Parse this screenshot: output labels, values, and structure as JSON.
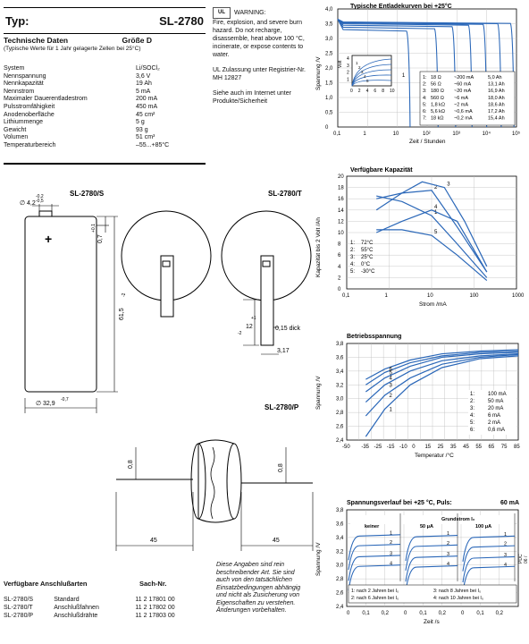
{
  "header": {
    "type_label": "Typ:",
    "model": "SL-2780"
  },
  "specs": {
    "title": "Technische Daten",
    "size": "Größe D",
    "subtitle": "(Typische Werte für 1 Jahr gelagerte Zellen bei 25°C)",
    "rows": [
      {
        "k": "System",
        "v": "Li/SOCl₂"
      },
      {
        "k": "Nennspannung",
        "v": "3,6 V"
      },
      {
        "k": "Nennkapazität",
        "v": "19 Ah"
      },
      {
        "k": "Nennstrom",
        "v": "5 mA"
      },
      {
        "k": "Maximaler Dauerentladestrom",
        "v": "200 mA"
      },
      {
        "k": "Pulsstromfähigkeit",
        "v": "450 mA"
      },
      {
        "k": "Anodenoberfläche",
        "v": "45 cm²"
      },
      {
        "k": "Lithiummenge",
        "v": "5 g"
      },
      {
        "k": "Gewicht",
        "v": "93 g"
      },
      {
        "k": "Volumen",
        "v": "51 cm³"
      },
      {
        "k": "Temperaturbereich",
        "v": "–55...+85°C"
      }
    ]
  },
  "warning": {
    "title": "WARNING:",
    "body": "Fire, explosion, and severe burn hazard. Do not recharge, disassemble, heat above 100 °C, incinerate, or expose contents to water.",
    "ul": "UL Zulassung unter Registrier-Nr. MH 12827",
    "see": "Siehe auch im Internet unter Produkte/Sicherheit"
  },
  "drawings": {
    "s_label": "SL-2780/S",
    "t_label": "SL-2780/T",
    "p_label": "SL-2780/P",
    "dim_top": "4,2",
    "dim_top_tol_up": "-0,2",
    "dim_top_tol_dn": "-0,5",
    "dim_07": "0,7",
    "dim_07_tol": "+0,1",
    "dim_height": "61,5",
    "dim_height_tol": "-2",
    "dim_dia": "32,9",
    "dim_dia_tol": "-0,7",
    "dim_tab": "12",
    "dim_tab_tol_up": "+1",
    "dim_tab_tol_dn": "-2",
    "dim_thick": "0,15 dick",
    "dim_317": "3,17",
    "dim_wire_left": "45",
    "dim_wire_right": "45",
    "dim_wire_dia": "0,8",
    "plus": "+"
  },
  "connections": {
    "title": "Verfügbare Anschlußarten",
    "nr_title": "Sach-Nr.",
    "rows": [
      {
        "type": "SL-2780/S",
        "desc": "Standard",
        "nr": "11 2 17801 00"
      },
      {
        "type": "SL-2780/T",
        "desc": "Anschlußfahnen",
        "nr": "11 2 17802 00"
      },
      {
        "type": "SL-2780/P",
        "desc": "Anschlußdrähte",
        "nr": "11 2 17803 00"
      }
    ]
  },
  "note": "Diese Angaben sind rein beschreibender Art. Sie sind auch von den tatsächlichen Einsatzbedingungen abhängig und nicht als Zusicherung von Eigenschaften zu verstehen. Änderungen vorbehalten.",
  "docref": "PDC 06 / 0e",
  "chart_data": [
    {
      "type": "line",
      "title": "Typische Entladekurven bei +25°C",
      "xlabel": "Zeit / Stunden",
      "ylabel": "Spannung /V",
      "xscale": "log",
      "x_ticks": [
        "0,1",
        "1",
        "10",
        "10²",
        "10³",
        "10⁴",
        "10⁵"
      ],
      "ylim": [
        0,
        4
      ],
      "y_ticks": [
        "0",
        "0,5",
        "1,0",
        "1,5",
        "2,0",
        "2,5",
        "3,0",
        "3,5",
        "4,0"
      ],
      "legend": [
        {
          "n": "1:",
          "r": "18 Ω",
          "i": "~200 mA",
          "c": "5,0 Ah"
        },
        {
          "n": "2:",
          "r": "56 Ω",
          "i": "~60 mA",
          "c": "13,1 Ah"
        },
        {
          "n": "3:",
          "r": "180 Ω",
          "i": "~20 mA",
          "c": "16,9 Ah"
        },
        {
          "n": "4:",
          "r": "560 Ω",
          "i": "~6 mA",
          "c": "18,0 Ah"
        },
        {
          "n": "5:",
          "r": "1,8 kΩ",
          "i": "~2 mA",
          "c": "18,6 Ah"
        },
        {
          "n": "6:",
          "r": "5,6 kΩ",
          "i": "~0,6 mA",
          "c": "17,2 Ah"
        },
        {
          "n": "7:",
          "r": "18 kΩ",
          "i": "~0,2 mA",
          "c": "15,4 Ah"
        }
      ],
      "series": [
        {
          "name": "1",
          "end_h": 25,
          "v": 3.3
        },
        {
          "name": "2",
          "end_h": 218,
          "v": 3.38
        },
        {
          "name": "3",
          "end_h": 845,
          "v": 3.45
        },
        {
          "name": "4",
          "end_h": 3000,
          "v": 3.5
        },
        {
          "name": "5",
          "end_h": 9300,
          "v": 3.53
        },
        {
          "name": "6",
          "end_h": 28700,
          "v": 3.55
        },
        {
          "name": "7",
          "end_h": 77000,
          "v": 3.56
        }
      ],
      "inset": {
        "ylabel": "Volt",
        "x_ticks": [
          "0",
          "2",
          "4",
          "6",
          "8",
          "10"
        ],
        "y_ticks": [
          "1",
          "2",
          "3",
          "4"
        ],
        "series": [
          "1",
          "2",
          "3",
          "4",
          "5"
        ]
      }
    },
    {
      "type": "line",
      "title": "Verfügbare Kapazität",
      "xlabel": "Strom /mA",
      "ylabel": "Kapazität bis 2 Volt /Ah",
      "xscale": "log",
      "x_ticks": [
        "0,1",
        "1",
        "10",
        "100",
        "1000"
      ],
      "ylim": [
        0,
        20
      ],
      "y_ticks": [
        "0",
        "2",
        "4",
        "6",
        "8",
        "10",
        "12",
        "14",
        "16",
        "18",
        "20"
      ],
      "legend": [
        {
          "n": "1:",
          "t": "72°C"
        },
        {
          "n": "2:",
          "t": "55°C"
        },
        {
          "n": "3:",
          "t": "25°C"
        },
        {
          "n": "4:",
          "t": "0°C"
        },
        {
          "n": "5:",
          "t": "-30°C"
        }
      ],
      "series": [
        {
          "name": "1",
          "x": [
            0.5,
            2,
            10,
            40,
            200
          ],
          "y": [
            16.5,
            15.5,
            13,
            8,
            2
          ]
        },
        {
          "name": "2",
          "x": [
            0.5,
            2,
            10,
            40,
            200
          ],
          "y": [
            16,
            17,
            17.5,
            11,
            3
          ]
        },
        {
          "name": "3",
          "x": [
            0.5,
            2,
            6,
            20,
            60,
            200
          ],
          "y": [
            14,
            17,
            19,
            18,
            12,
            4
          ]
        },
        {
          "name": "4",
          "x": [
            0.5,
            2,
            10,
            40,
            200
          ],
          "y": [
            10,
            12,
            14,
            12,
            3
          ]
        },
        {
          "name": "5",
          "x": [
            0.5,
            2,
            10,
            40,
            200
          ],
          "y": [
            10.5,
            10.5,
            9.5,
            6,
            1.5
          ]
        }
      ]
    },
    {
      "type": "line",
      "title": "Betriebsspannung",
      "xlabel": "Temperatur /°C",
      "ylabel": "Spannung /V",
      "xlim": [
        -50,
        85
      ],
      "x_ticks": [
        "-50",
        "-35",
        "-25",
        "-20",
        "-15",
        "-10",
        "0",
        "15",
        "25",
        "35",
        "45",
        "55",
        "65",
        "75",
        "85"
      ],
      "ylim": [
        2.4,
        3.8
      ],
      "y_ticks": [
        "2,4",
        "2,6",
        "2,8",
        "3,0",
        "3,2",
        "3,4",
        "3,6",
        "3,8"
      ],
      "legend": [
        {
          "n": "1:",
          "i": "100 mA"
        },
        {
          "n": "2:",
          "i": "50 mA"
        },
        {
          "n": "3:",
          "i": "20 mA"
        },
        {
          "n": "4:",
          "i": "6 mA"
        },
        {
          "n": "5:",
          "i": "2 mA"
        },
        {
          "n": "6:",
          "i": "0,6 mA"
        }
      ],
      "series": [
        {
          "name": "1",
          "x": [
            -35,
            -20,
            0,
            25,
            55,
            85
          ],
          "y": [
            2.45,
            2.85,
            3.2,
            3.45,
            3.58,
            3.62
          ]
        },
        {
          "name": "2",
          "x": [
            -35,
            -20,
            0,
            25,
            55,
            85
          ],
          "y": [
            2.75,
            3.05,
            3.3,
            3.5,
            3.6,
            3.64
          ]
        },
        {
          "name": "3",
          "x": [
            -35,
            -20,
            0,
            25,
            55,
            85
          ],
          "y": [
            2.95,
            3.2,
            3.4,
            3.55,
            3.62,
            3.65
          ]
        },
        {
          "name": "4",
          "x": [
            -35,
            -20,
            0,
            25,
            55,
            85
          ],
          "y": [
            3.1,
            3.3,
            3.47,
            3.6,
            3.65,
            3.67
          ]
        },
        {
          "name": "5",
          "x": [
            -35,
            -20,
            0,
            25,
            55,
            85
          ],
          "y": [
            3.2,
            3.38,
            3.52,
            3.62,
            3.67,
            3.69
          ]
        },
        {
          "name": "6",
          "x": [
            -35,
            -20,
            0,
            25,
            55,
            85
          ],
          "y": [
            3.28,
            3.43,
            3.56,
            3.65,
            3.69,
            3.71
          ]
        }
      ]
    },
    {
      "type": "line",
      "title": "Spannungsverlauf bei +25 °C, Puls:",
      "pulse": "60 mA",
      "xlabel": "Zeit /s",
      "ylabel": "Spannung /V",
      "ylim": [
        2.4,
        3.8
      ],
      "y_ticks": [
        "2,4",
        "2,6",
        "2,8",
        "3,0",
        "3,2",
        "3,4",
        "3,6",
        "3,8"
      ],
      "x_ticks": [
        "0",
        "0,1",
        "0,2",
        "0",
        "0,1",
        "0,2",
        "0",
        "0,1",
        "0,2"
      ],
      "grundstrom": "Grundstrom I₀",
      "panels": [
        "keiner",
        "50 μA",
        "100 μA"
      ],
      "legend": [
        "1: nach 2 Jahren bei I₀",
        "2: nach 6 Jahren bei I₀",
        "3: nach 8 Jahren bei I₀",
        "4: nach 10 Jahren bei I₀"
      ],
      "series": [
        {
          "name": "1",
          "v": 3.42
        },
        {
          "name": "2",
          "v": 3.28
        },
        {
          "name": "3",
          "v": 3.12
        },
        {
          "name": "4",
          "v": 2.98
        }
      ]
    }
  ]
}
